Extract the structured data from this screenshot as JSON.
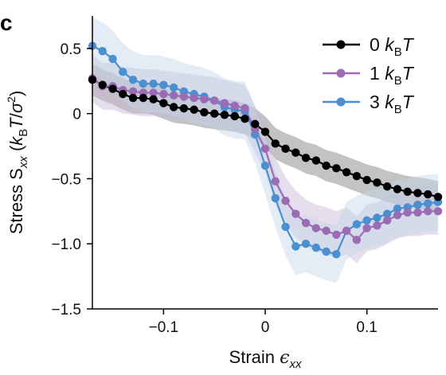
{
  "panel_label": "c",
  "chart_data": {
    "type": "line",
    "xlabel": "Strain ϵxx",
    "xlabel_parts": {
      "main": "Strain ",
      "symbol": "ϵ",
      "sub": "xx"
    },
    "ylabel": "Stress Sxx (kBT/σ2)",
    "ylabel_parts": {
      "main": "Stress S",
      "sub": "xx",
      "paren_open": " (",
      "k": "k",
      "k_sub": "B",
      "t": "T",
      "slash": "/",
      "sigma": "σ",
      "sup": "2",
      "paren_close": ")"
    },
    "xlim": [
      -0.17,
      0.17
    ],
    "ylim": [
      -1.5,
      0.75
    ],
    "xticks": [
      -0.1,
      0,
      0.1
    ],
    "xtick_labels": [
      "−0.1",
      "0",
      "0.1"
    ],
    "yticks": [
      0.5,
      0,
      -0.5,
      -1.0,
      -1.5
    ],
    "ytick_labels": [
      "0.5",
      "0",
      "−0.5",
      "−1.0",
      "−1.5"
    ],
    "legend_position": "top-right",
    "x": [
      -0.17,
      -0.16,
      -0.15,
      -0.14,
      -0.13,
      -0.12,
      -0.11,
      -0.1,
      -0.09,
      -0.08,
      -0.07,
      -0.06,
      -0.05,
      -0.04,
      -0.03,
      -0.02,
      -0.01,
      0,
      0.01,
      0.02,
      0.03,
      0.04,
      0.05,
      0.06,
      0.07,
      0.08,
      0.09,
      0.1,
      0.11,
      0.12,
      0.13,
      0.14,
      0.15,
      0.16,
      0.17
    ],
    "series": [
      {
        "name": "0 kBT",
        "label_prefix": "0 ",
        "color": "#000000",
        "band_color": "#888888",
        "values": [
          0.26,
          0.22,
          0.19,
          0.15,
          0.12,
          0.12,
          0.11,
          0.08,
          0.05,
          0.04,
          0.03,
          0.01,
          0.0,
          -0.01,
          -0.02,
          -0.04,
          -0.08,
          -0.14,
          -0.23,
          -0.27,
          -0.3,
          -0.34,
          -0.36,
          -0.4,
          -0.42,
          -0.45,
          -0.48,
          -0.51,
          -0.53,
          -0.56,
          -0.58,
          -0.6,
          -0.61,
          -0.62,
          -0.64
        ],
        "band_halfwidth": 0.12
      },
      {
        "name": "1 kBT",
        "label_prefix": "1 ",
        "color": "#9b6bb3",
        "band_color": "#c8b6d8",
        "values": [
          0.27,
          0.21,
          0.21,
          0.18,
          0.17,
          0.16,
          0.16,
          0.15,
          0.14,
          0.13,
          0.12,
          0.11,
          0.1,
          0.08,
          0.06,
          0.04,
          -0.12,
          -0.27,
          -0.52,
          -0.67,
          -0.77,
          -0.84,
          -0.88,
          -0.9,
          -0.93,
          -0.9,
          -0.97,
          -0.88,
          -0.86,
          -0.82,
          -0.78,
          -0.76,
          -0.76,
          -0.75,
          -0.75
        ],
        "band_halfwidth": 0.18
      },
      {
        "name": "3 kBT",
        "label_prefix": "3 ",
        "color": "#4a8fd0",
        "band_color": "#c3d6ec",
        "values": [
          0.52,
          0.48,
          0.42,
          0.32,
          0.26,
          0.23,
          0.23,
          0.22,
          0.2,
          0.17,
          0.15,
          0.13,
          0.1,
          0.05,
          0.03,
          0.02,
          -0.16,
          -0.4,
          -0.65,
          -0.87,
          -1.02,
          -1.0,
          -1.03,
          -1.06,
          -1.08,
          -0.9,
          -0.85,
          -0.82,
          -0.8,
          -0.77,
          -0.73,
          -0.72,
          -0.7,
          -0.69,
          -0.68
        ],
        "band_halfwidth": 0.22
      }
    ]
  }
}
